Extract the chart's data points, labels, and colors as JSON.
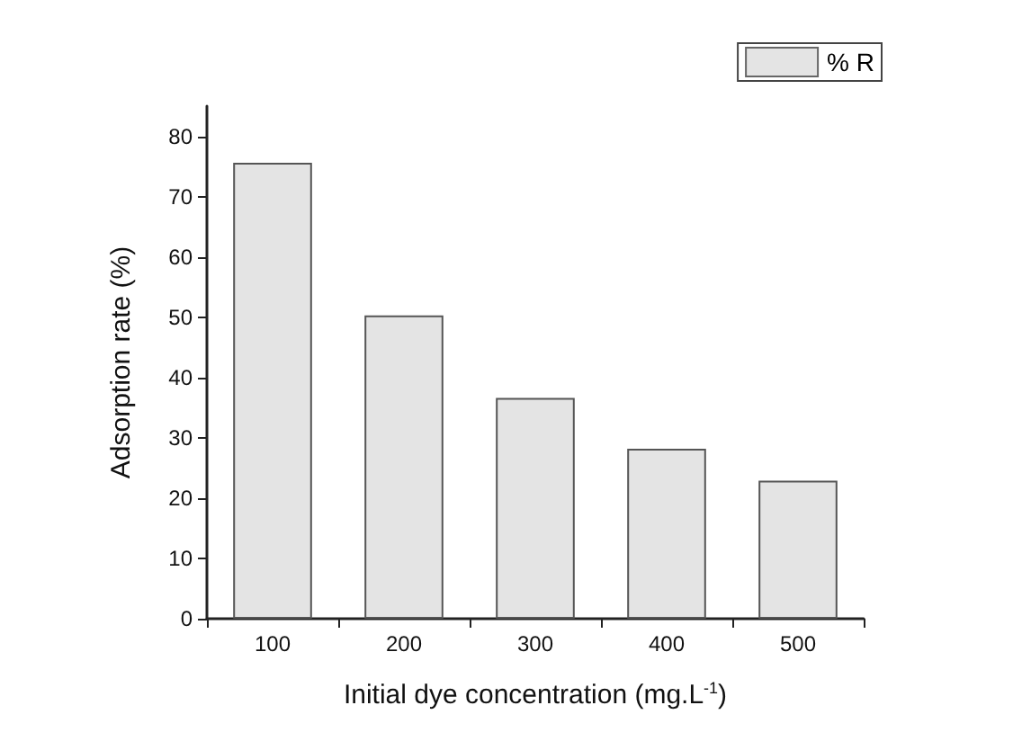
{
  "chart_data": {
    "type": "bar",
    "xlabel": "Initial dye concentration (mg.L$^{-1}$)",
    "ylabel": "Adsorption rate (%)",
    "categories": [
      "100",
      "200",
      "300",
      "400",
      "500"
    ],
    "series": [
      {
        "name": "% R",
        "color": "#e4e4e4",
        "values": [
          75.6,
          50.3,
          36.6,
          28.2,
          22.9
        ]
      }
    ],
    "ylim": [
      0,
      85
    ],
    "yticks": [
      0,
      10,
      20,
      30,
      40,
      50,
      60,
      70,
      80
    ],
    "grid": false,
    "legend": "top right"
  }
}
